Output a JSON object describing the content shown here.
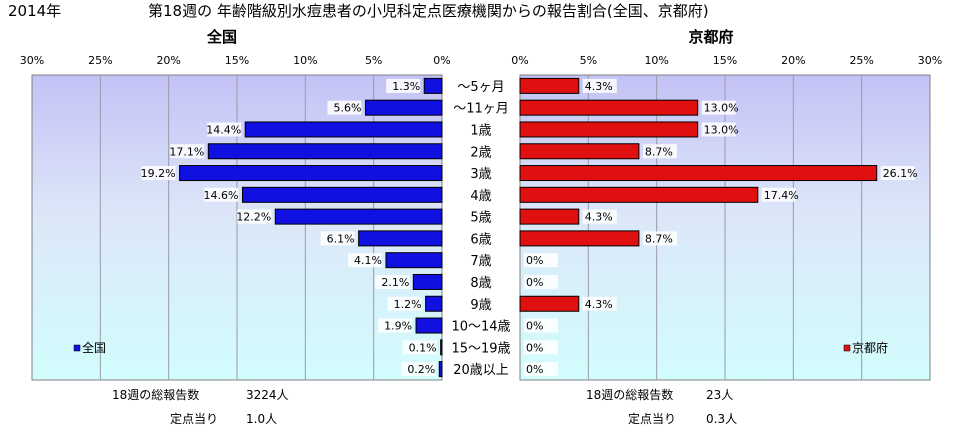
{
  "header": {
    "year": "2014年",
    "title": "第18週の 年齢階級別水痘患者の小児科定点医療機関からの報告割合(全国、京都府)"
  },
  "chart_data": [
    {
      "type": "bar",
      "orientation": "horizontal",
      "title": "全国",
      "categories": [
        "～5ヶ月",
        "～11ヶ月",
        "1歳",
        "2歳",
        "3歳",
        "4歳",
        "5歳",
        "6歳",
        "7歳",
        "8歳",
        "9歳",
        "10～14歳",
        "15～19歳",
        "20歳以上"
      ],
      "series": [
        {
          "name": "全国",
          "values": [
            1.3,
            5.6,
            14.4,
            17.1,
            19.2,
            14.6,
            12.2,
            6.1,
            4.1,
            2.1,
            1.2,
            1.9,
            0.1,
            0.2
          ]
        }
      ],
      "xlim": [
        0,
        30
      ],
      "x_reversed": true,
      "ticks": [
        "30%",
        "25%",
        "20%",
        "15%",
        "10%",
        "5%",
        "0%"
      ],
      "legend": "bottom-left",
      "color": "#1010e0"
    },
    {
      "type": "bar",
      "orientation": "horizontal",
      "title": "京都府",
      "categories": [
        "～5ヶ月",
        "～11ヶ月",
        "1歳",
        "2歳",
        "3歳",
        "4歳",
        "5歳",
        "6歳",
        "7歳",
        "8歳",
        "9歳",
        "10～14歳",
        "15～19歳",
        "20歳以上"
      ],
      "series": [
        {
          "name": "京都府",
          "values": [
            4.3,
            13.0,
            13.0,
            8.7,
            26.1,
            17.4,
            4.3,
            8.7,
            0,
            0,
            4.3,
            0,
            0,
            0
          ]
        }
      ],
      "xlim": [
        0,
        30
      ],
      "ticks": [
        "0%",
        "5%",
        "10%",
        "15%",
        "20%",
        "25%",
        "30%"
      ],
      "legend": "bottom-right",
      "color": "#e01010"
    }
  ],
  "footer": {
    "national": {
      "total_label": "18週の総報告数",
      "total_value": "3224人",
      "per_label": "定点当り",
      "per_value": "1.0人"
    },
    "kyoto": {
      "total_label": "18週の総報告数",
      "total_value": "23人",
      "per_label": "定点当り",
      "per_value": "0.3人"
    }
  }
}
